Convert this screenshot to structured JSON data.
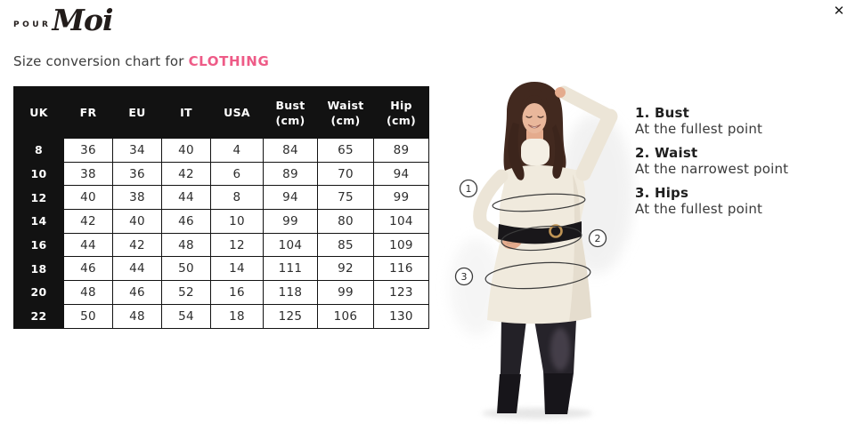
{
  "modal": {
    "close_icon": "✕"
  },
  "brand": {
    "prefix": "POUR",
    "script": "Moi"
  },
  "heading": {
    "text": "Size conversion chart for ",
    "highlight": "CLOTHING"
  },
  "size_table": {
    "columns": [
      "UK",
      "FR",
      "EU",
      "IT",
      "USA",
      "Bust\n(cm)",
      "Waist\n(cm)",
      "Hip (cm)"
    ],
    "rows": [
      [
        "8",
        "36",
        "34",
        "40",
        "4",
        "84",
        "65",
        "89"
      ],
      [
        "10",
        "38",
        "36",
        "42",
        "6",
        "89",
        "70",
        "94"
      ],
      [
        "12",
        "40",
        "38",
        "44",
        "8",
        "94",
        "75",
        "99"
      ],
      [
        "14",
        "42",
        "40",
        "46",
        "10",
        "99",
        "80",
        "104"
      ],
      [
        "16",
        "44",
        "42",
        "48",
        "12",
        "104",
        "85",
        "109"
      ],
      [
        "18",
        "46",
        "44",
        "50",
        "14",
        "111",
        "92",
        "116"
      ],
      [
        "20",
        "48",
        "46",
        "52",
        "16",
        "118",
        "99",
        "123"
      ],
      [
        "22",
        "50",
        "48",
        "54",
        "18",
        "125",
        "106",
        "130"
      ]
    ]
  },
  "measurement_guide": {
    "items": [
      {
        "marker": "1",
        "label": "1. Bust",
        "description": "At the fullest point"
      },
      {
        "marker": "2",
        "label": "2. Waist",
        "description": "At the narrowest point"
      },
      {
        "marker": "3",
        "label": "3. Hips",
        "description": "At the fullest point"
      }
    ]
  },
  "colors": {
    "accent": "#ee5b87",
    "table_ink": "#121212"
  }
}
